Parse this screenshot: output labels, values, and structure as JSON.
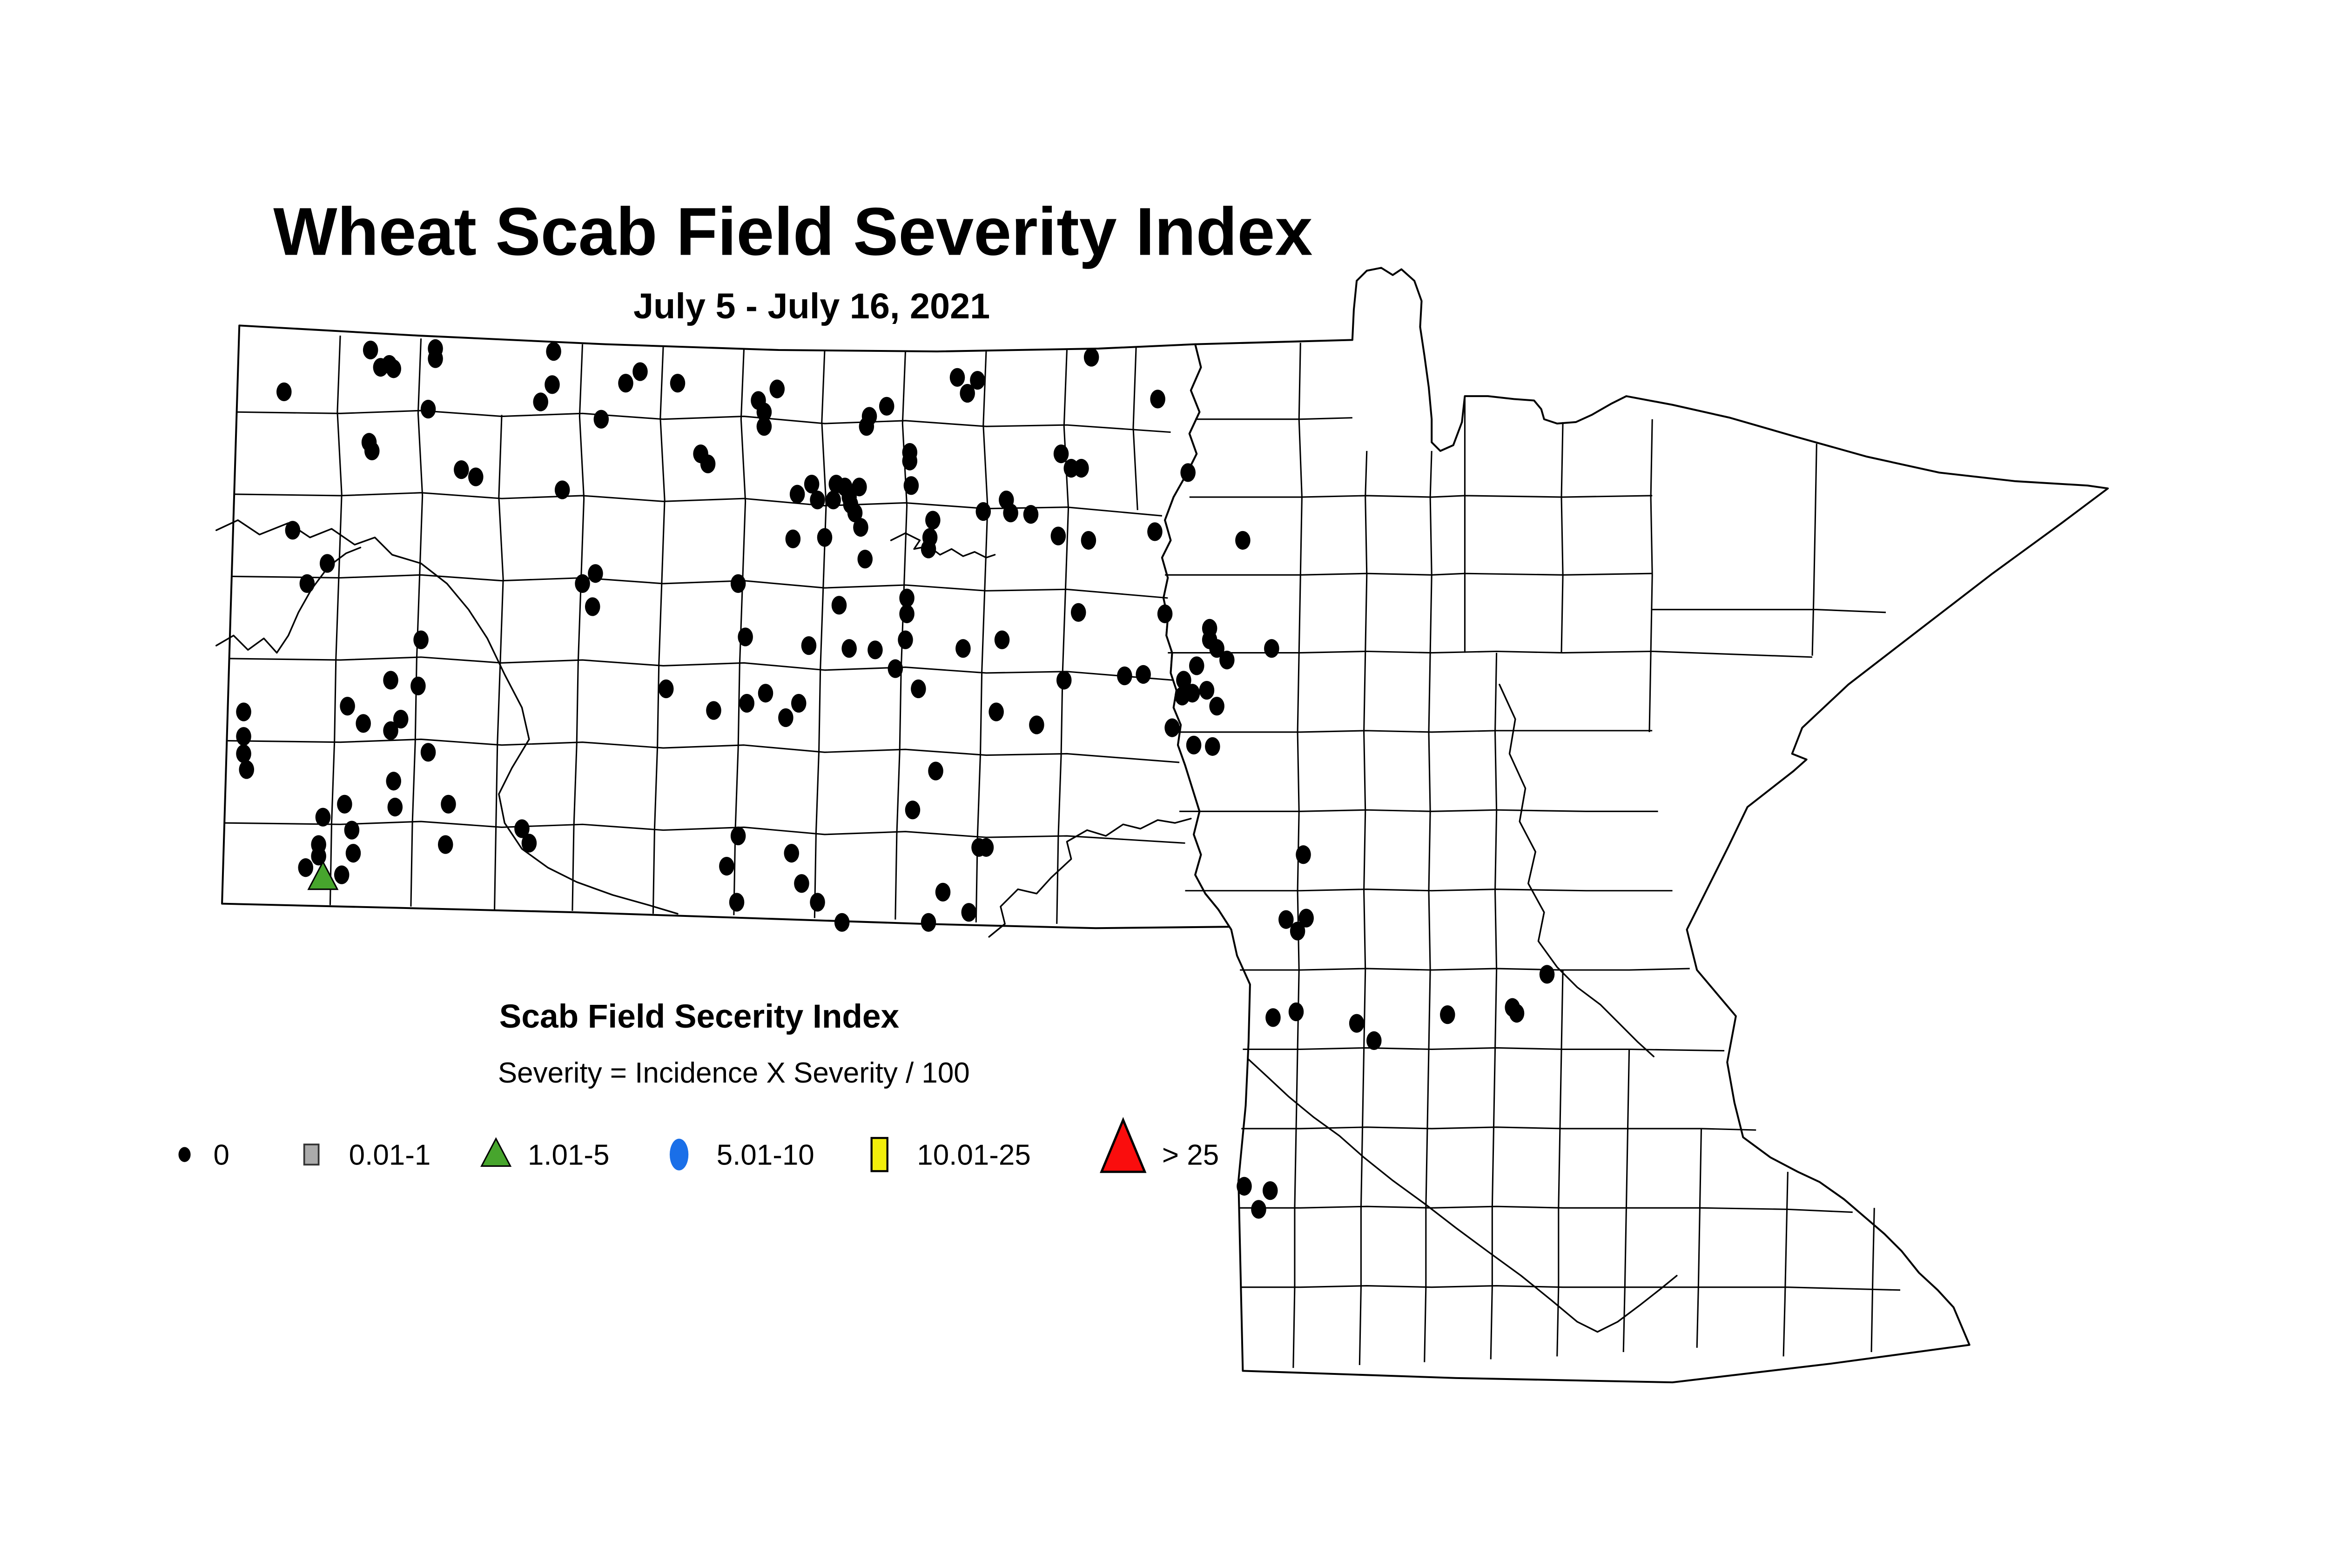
{
  "title": "Wheat Scab Field Severity Index",
  "subtitle": "July 5 - July 16, 2021",
  "legend": {
    "title": "Scab Field Secerity Index",
    "formula": "Severity = Incidence X Severity / 100",
    "items": [
      {
        "symbol": "dot",
        "color": "#000000",
        "label": "0"
      },
      {
        "symbol": "square",
        "color": "#ababab",
        "label": "0.01-1"
      },
      {
        "symbol": "triangle",
        "color": "#47a52d",
        "label": "1.01-5"
      },
      {
        "symbol": "circle",
        "color": "#1a6fe8",
        "label": "5.01-10"
      },
      {
        "symbol": "square-tall",
        "color": "#f2ee0a",
        "label": "10.01-25"
      },
      {
        "symbol": "triangle-large",
        "color": "#fa0d0d",
        "label": "> 25"
      }
    ]
  },
  "chart_data": {
    "type": "scatter",
    "title": "Wheat Scab Field Severity Index",
    "subtitle": "July 5 - July 16, 2021",
    "region": "North Dakota and Minnesota county map",
    "series": [
      {
        "name": "0",
        "marker": "black-dot",
        "points": [
          [
            257,
            120
          ],
          [
            302,
            119
          ],
          [
            302,
            126
          ],
          [
            264,
            132
          ],
          [
            270,
            130
          ],
          [
            273,
            133
          ],
          [
            384,
            121
          ],
          [
            383,
            144
          ],
          [
            434,
            143
          ],
          [
            444,
            135
          ],
          [
            470,
            143
          ],
          [
            297,
            161
          ],
          [
            375,
            156
          ],
          [
            417,
            168
          ],
          [
            256,
            184
          ],
          [
            258,
            190
          ],
          [
            197,
            149
          ],
          [
            486,
            192
          ],
          [
            491,
            199
          ],
          [
            320,
            203
          ],
          [
            330,
            208
          ],
          [
            390,
            217
          ],
          [
            203,
            245
          ],
          [
            227,
            268
          ],
          [
            213,
            282
          ],
          [
            413,
            275
          ],
          [
            404,
            282
          ],
          [
            411,
            298
          ],
          [
            292,
            321
          ],
          [
            757,
            125
          ],
          [
            664,
            139
          ],
          [
            678,
            141
          ],
          [
            671,
            150
          ],
          [
            539,
            147
          ],
          [
            526,
            155
          ],
          [
            530,
            163
          ],
          [
            530,
            173
          ],
          [
            615,
            159
          ],
          [
            603,
            166
          ],
          [
            601,
            173
          ],
          [
            803,
            154
          ],
          [
            631,
            191
          ],
          [
            631,
            197
          ],
          [
            736,
            192
          ],
          [
            743,
            202
          ],
          [
            750,
            202
          ],
          [
            824,
            205
          ],
          [
            682,
            232
          ],
          [
            698,
            224
          ],
          [
            701,
            233
          ],
          [
            715,
            234
          ],
          [
            563,
            213
          ],
          [
            553,
            220
          ],
          [
            580,
            213
          ],
          [
            586,
            215
          ],
          [
            596,
            215
          ],
          [
            567,
            224
          ],
          [
            578,
            224
          ],
          [
            589,
            222
          ],
          [
            590,
            227
          ],
          [
            593,
            233
          ],
          [
            597,
            243
          ],
          [
            632,
            214
          ],
          [
            550,
            251
          ],
          [
            572,
            250
          ],
          [
            600,
            265
          ],
          [
            647,
            238
          ],
          [
            645,
            250
          ],
          [
            644,
            258
          ],
          [
            734,
            249
          ],
          [
            755,
            252
          ],
          [
            801,
            246
          ],
          [
            512,
            282
          ],
          [
            582,
            297
          ],
          [
            629,
            292
          ],
          [
            629,
            303
          ],
          [
            748,
            302
          ],
          [
            808,
            303
          ],
          [
            839,
            313
          ],
          [
            839,
            321
          ],
          [
            628,
            321
          ],
          [
            695,
            321
          ],
          [
            517,
            319
          ],
          [
            561,
            325
          ],
          [
            589,
            327
          ],
          [
            607,
            328
          ],
          [
            668,
            327
          ],
          [
            621,
            341
          ],
          [
            637,
            355
          ],
          [
            531,
            358
          ],
          [
            518,
            365
          ],
          [
            554,
            365
          ],
          [
            545,
            375
          ],
          [
            691,
            371
          ],
          [
            719,
            380
          ],
          [
            738,
            349
          ],
          [
            780,
            346
          ],
          [
            793,
            345
          ],
          [
            821,
            349
          ],
          [
            827,
            358
          ],
          [
            830,
            339
          ],
          [
            844,
            327
          ],
          [
            851,
            335
          ],
          [
            882,
            327
          ],
          [
            837,
            356
          ],
          [
            820,
            360
          ],
          [
            844,
            367
          ],
          [
            813,
            382
          ],
          [
            828,
            394
          ],
          [
            841,
            395
          ],
          [
            649,
            412
          ],
          [
            633,
            439
          ],
          [
            512,
            457
          ],
          [
            549,
            469
          ],
          [
            504,
            478
          ],
          [
            679,
            465
          ],
          [
            684,
            465
          ],
          [
            556,
            490
          ],
          [
            511,
            503
          ],
          [
            567,
            503
          ],
          [
            654,
            496
          ],
          [
            584,
            517
          ],
          [
            644,
            517
          ],
          [
            672,
            510
          ],
          [
            271,
            349
          ],
          [
            290,
            353
          ],
          [
            241,
            367
          ],
          [
            169,
            371
          ],
          [
            252,
            379
          ],
          [
            278,
            376
          ],
          [
            271,
            384
          ],
          [
            169,
            388
          ],
          [
            169,
            400
          ],
          [
            171,
            411
          ],
          [
            297,
            399
          ],
          [
            273,
            419
          ],
          [
            239,
            435
          ],
          [
            274,
            437
          ],
          [
            224,
            444
          ],
          [
            311,
            435
          ],
          [
            362,
            452
          ],
          [
            367,
            462
          ],
          [
            309,
            463
          ],
          [
            244,
            453
          ],
          [
            221,
            463
          ],
          [
            221,
            471
          ],
          [
            212,
            479
          ],
          [
            245,
            469
          ],
          [
            237,
            484
          ],
          [
            462,
            355
          ],
          [
            495,
            370
          ],
          [
            862,
            252
          ],
          [
            904,
            470
          ],
          [
            892,
            515
          ],
          [
            906,
            514
          ],
          [
            900,
            523
          ],
          [
            1073,
            553
          ],
          [
            1049,
            576
          ],
          [
            1052,
            580
          ],
          [
            1004,
            581
          ],
          [
            899,
            579
          ],
          [
            883,
            583
          ],
          [
            941,
            587
          ],
          [
            953,
            599
          ],
          [
            863,
            700
          ],
          [
            881,
            703
          ],
          [
            873,
            716
          ]
        ]
      },
      {
        "name": "0.01-1",
        "marker": "gray-square",
        "points": []
      },
      {
        "name": "1.01-5",
        "marker": "green-triangle",
        "points": [
          [
            224,
            485
          ]
        ]
      },
      {
        "name": "5.01-10",
        "marker": "blue-circle",
        "points": []
      },
      {
        "name": "10.01-25",
        "marker": "yellow-square",
        "points": []
      },
      {
        "name": "> 25",
        "marker": "red-triangle",
        "points": []
      }
    ]
  }
}
